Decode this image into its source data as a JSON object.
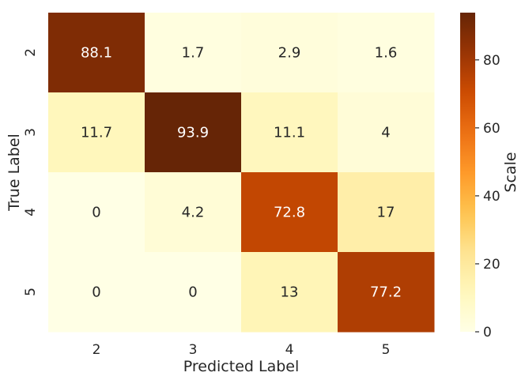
{
  "chart_data": {
    "type": "heatmap",
    "xlabel": "Predicted Label",
    "ylabel": "True Label",
    "x_categories": [
      "2",
      "3",
      "4",
      "5"
    ],
    "y_categories": [
      "2",
      "3",
      "4",
      "5"
    ],
    "values": [
      [
        88.1,
        1.7,
        2.9,
        1.6
      ],
      [
        11.7,
        93.9,
        11.1,
        4
      ],
      [
        0,
        4.2,
        72.8,
        17
      ],
      [
        0,
        0,
        13,
        77.2
      ]
    ],
    "colorbar": {
      "label": "Scale",
      "range": [
        0,
        93.9
      ],
      "ticks": [
        "0",
        "20",
        "40",
        "60",
        "80"
      ],
      "tick_values": [
        0,
        20,
        40,
        60,
        80
      ]
    },
    "colormap": "YlOrBr",
    "colors": {
      "low": "#ffffe5",
      "high": "#662506",
      "text_dark": "#262626",
      "text_light": "#ffffff"
    }
  }
}
